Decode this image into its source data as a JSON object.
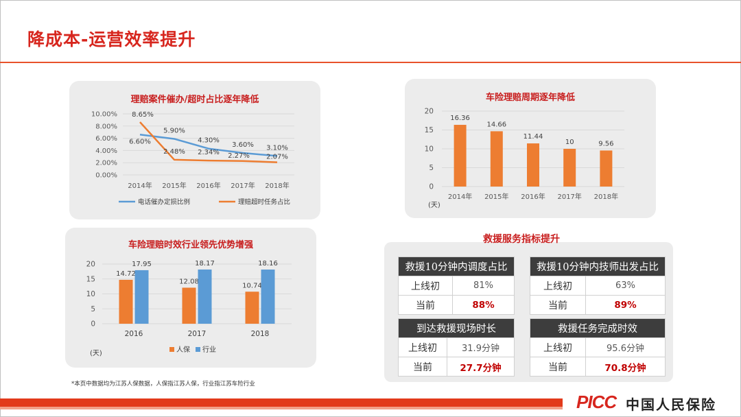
{
  "page": {
    "title": "降成本-运营效率提升",
    "footnote": "*本页中数据均为江苏人保数据，人保指江苏人保，行业指江苏车险行业",
    "logo_mark": "PICC",
    "logo_text": "中国人民保险"
  },
  "colors": {
    "blue": "#5b9bd5",
    "orange": "#ed7d31",
    "brand_red": "#d7261e",
    "header_dark": "#3d3d3d"
  },
  "chart_data": [
    {
      "id": "overtime",
      "type": "line",
      "title": "理赔案件催办/超时占比逐年降低",
      "categories": [
        "2014年",
        "2015年",
        "2016年",
        "2017年",
        "2018年"
      ],
      "series": [
        {
          "name": "电话催办定损比例",
          "color": "#5b9bd5",
          "values": [
            6.6,
            5.9,
            4.3,
            3.6,
            3.1
          ],
          "labels": [
            "6.60%",
            "5.90%",
            "4.30%",
            "3.60%",
            "3.10%"
          ]
        },
        {
          "name": "理赔超时任务占比",
          "color": "#ed7d31",
          "values": [
            8.65,
            2.48,
            2.34,
            2.27,
            2.07
          ],
          "labels": [
            "8.65%",
            "2.48%",
            "2.34%",
            "2.27%",
            "2.07%"
          ]
        }
      ],
      "ylim": [
        0,
        10
      ],
      "yticks": [
        "0.00%",
        "2.00%",
        "4.00%",
        "6.00%",
        "8.00%",
        "10.00%"
      ],
      "grid": true,
      "legend": "bottom"
    },
    {
      "id": "cycle",
      "type": "bar",
      "title": "车险理赔周期逐年降低",
      "categories": [
        "2014年",
        "2015年",
        "2016年",
        "2017年",
        "2018年"
      ],
      "values": [
        16.36,
        14.66,
        11.44,
        10,
        9.56
      ],
      "labels": [
        "16.36",
        "14.66",
        "11.44",
        "10",
        "9.56"
      ],
      "ylim": [
        0,
        20
      ],
      "yticks": [
        "0",
        "5",
        "10",
        "15",
        "20"
      ],
      "unit": "(天)",
      "grid": true
    },
    {
      "id": "advantage",
      "type": "bar",
      "title": "车险理赔时效行业领先优势增强",
      "categories": [
        "2016",
        "2017",
        "2018"
      ],
      "series": [
        {
          "name": "人保",
          "color": "#ed7d31",
          "values": [
            14.72,
            12.08,
            10.74
          ],
          "labels": [
            "14.72",
            "12.08",
            "10.74"
          ]
        },
        {
          "name": "行业",
          "color": "#5b9bd5",
          "values": [
            17.95,
            18.17,
            18.16
          ],
          "labels": [
            "17.95",
            "18.17",
            "18.16"
          ]
        }
      ],
      "ylim": [
        0,
        20
      ],
      "yticks": [
        "0",
        "5",
        "10",
        "15",
        "20"
      ],
      "unit": "(天)",
      "grid": true,
      "legend": "bottom"
    }
  ],
  "rescue": {
    "title": "救援服务指标提升",
    "tables": [
      {
        "header": "救援10分钟内调度占比",
        "rows": [
          {
            "label": "上线初",
            "value": "81%"
          },
          {
            "label": "当前",
            "value": "88%"
          }
        ]
      },
      {
        "header": "救援10分钟内技师出发占比",
        "rows": [
          {
            "label": "上线初",
            "value": "63%"
          },
          {
            "label": "当前",
            "value": "89%"
          }
        ]
      },
      {
        "header": "到达救援现场时长",
        "rows": [
          {
            "label": "上线初",
            "value": "31.9分钟"
          },
          {
            "label": "当前",
            "value": "27.7分钟"
          }
        ]
      },
      {
        "header": "救援任务完成时效",
        "rows": [
          {
            "label": "上线初",
            "value": "95.6分钟"
          },
          {
            "label": "当前",
            "value": "70.8分钟"
          }
        ]
      }
    ]
  }
}
